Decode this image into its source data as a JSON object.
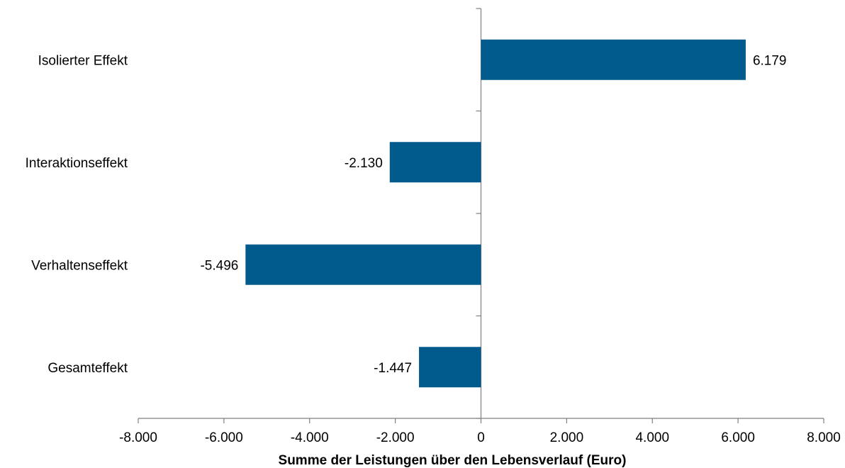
{
  "chart_data": {
    "type": "bar",
    "orientation": "horizontal",
    "categories": [
      "Isolierter Effekt",
      "Interaktionseffekt",
      "Verhaltenseffekt",
      "Gesamteffekt"
    ],
    "values": [
      6179,
      -2130,
      -5496,
      -1447
    ],
    "value_labels": [
      "6.179",
      "-2.130",
      "-5.496",
      "-1.447"
    ],
    "xlabel": "Summe der Leistungen über den Lebensverlauf (Euro)",
    "xlim": [
      -8000,
      8000
    ],
    "x_ticks": [
      -8000,
      -6000,
      -4000,
      -2000,
      0,
      2000,
      4000,
      6000,
      8000
    ],
    "x_tick_labels": [
      "-8.000",
      "-6.000",
      "-4.000",
      "-2.000",
      "0",
      "2.000",
      "4.000",
      "6.000",
      "8.000"
    ],
    "bar_color": "#005A8C",
    "grid": false,
    "legend": "none"
  }
}
